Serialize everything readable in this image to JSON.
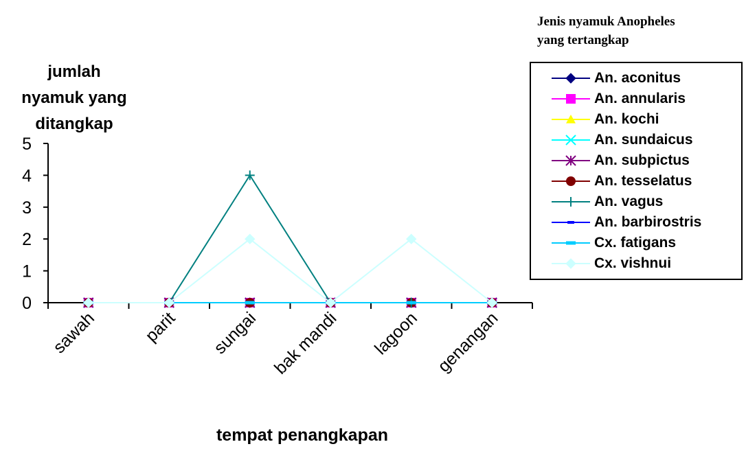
{
  "chart_data": {
    "type": "line",
    "categories": [
      "sawah",
      "parit",
      "sungai",
      "bak mandi",
      "lagoon",
      "genangan"
    ],
    "ylim": [
      0,
      5
    ],
    "yticks": [
      "0",
      "1",
      "2",
      "3",
      "4",
      "5"
    ],
    "ylabel_lines": [
      "jumlah",
      "nyamuk yang",
      "ditangkap"
    ],
    "xlabel": "tempat penangkapan",
    "legend_title_lines": [
      "Jenis nyamuk Anopheles",
      "yang tertangkap"
    ],
    "legend_position": "right",
    "grid": false,
    "series": [
      {
        "name": "An. aconitus",
        "color": "#000080",
        "marker": "diamond",
        "values": [
          0,
          0,
          0,
          0,
          0,
          0
        ]
      },
      {
        "name": "An. annularis",
        "color": "#FF00FF",
        "marker": "square",
        "values": [
          0,
          0,
          0,
          0,
          0,
          0
        ]
      },
      {
        "name": "An. kochi",
        "color": "#FFFF00",
        "marker": "triangle",
        "values": [
          0,
          0,
          0,
          0,
          0,
          0
        ]
      },
      {
        "name": "An. sundaicus",
        "color": "#00FFFF",
        "marker": "x",
        "values": [
          0,
          0,
          0,
          0,
          0,
          0
        ]
      },
      {
        "name": "An. subpictus",
        "color": "#800080",
        "marker": "star",
        "values": [
          0,
          0,
          0,
          0,
          0,
          0
        ]
      },
      {
        "name": "An. tesselatus",
        "color": "#800000",
        "marker": "circle",
        "values": [
          0,
          0,
          0,
          0,
          0,
          0
        ]
      },
      {
        "name": "An. vagus",
        "color": "#008080",
        "marker": "plus",
        "values": [
          0,
          0,
          4,
          0,
          0,
          0
        ]
      },
      {
        "name": "An. barbirostris",
        "color": "#0000FF",
        "marker": "dash",
        "values": [
          0,
          0,
          0,
          0,
          0,
          0
        ]
      },
      {
        "name": "Cx. fatigans",
        "color": "#00CCFF",
        "marker": "bar",
        "values": [
          0,
          0,
          0,
          0,
          0,
          0
        ]
      },
      {
        "name": "Cx. vishnui",
        "color": "#CCFFFF",
        "marker": "diamond",
        "values": [
          0,
          0,
          2,
          0,
          2,
          0
        ]
      }
    ]
  }
}
